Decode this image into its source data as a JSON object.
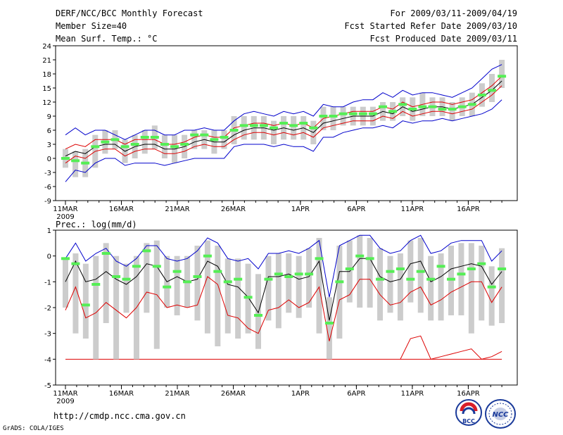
{
  "header": {
    "left": [
      "DERF/NCC/BCC Monthly Forecast",
      "Member Size=40",
      "Mean Surf. Temp.: °C"
    ],
    "right": [
      "For 2009/03/11-2009/04/19",
      "Fcst Started Refer Date 2009/03/10",
      "Fcst Produced Date 2009/03/11"
    ]
  },
  "footer": {
    "url": "http://cmdp.ncc.cma.gov.cn",
    "credit": "GrADS: COLA/IGES"
  },
  "logos": {
    "bcc_label": "BCC",
    "ncc_label": "NCC"
  },
  "colors": {
    "box": "#cccccc",
    "median": "#55ee55",
    "mean": "#000000",
    "low": "#dd0000",
    "envelope": "#0000cc"
  },
  "chart_data": [
    {
      "type": "line",
      "title": "Mean Surf. Temp.: °C",
      "x_tick_labels": [
        "11MAR",
        "16MAR",
        "21MAR",
        "26MAR",
        "1APR",
        "6APR",
        "11APR",
        "16APR"
      ],
      "x_tick_index": [
        0,
        5,
        10,
        15,
        21,
        26,
        31,
        36
      ],
      "x_sub_label": "2009",
      "y_ticks": [
        -9,
        -6,
        -3,
        0,
        3,
        6,
        9,
        12,
        15,
        18,
        21,
        24
      ],
      "ylim": [
        -9,
        24
      ],
      "days": 40,
      "series": [
        {
          "name": "mean",
          "color": "#000000",
          "values": [
            0.5,
            1.5,
            1,
            2.5,
            3,
            3,
            1.5,
            2.5,
            3,
            3,
            2,
            2,
            2.5,
            3.5,
            4,
            3.5,
            3.5,
            5,
            6,
            6.5,
            6.5,
            6,
            6.5,
            6,
            6.5,
            5.5,
            7.5,
            8,
            8.5,
            9,
            9,
            9,
            10,
            9.5,
            11,
            10,
            10.5,
            11,
            11,
            10.5,
            11,
            11.5,
            13,
            14.5,
            16.5
          ]
        },
        {
          "name": "upper",
          "color": "#dd0000",
          "values": [
            2,
            3,
            2.5,
            4,
            4,
            4,
            3,
            4,
            4,
            4,
            3,
            3,
            3.5,
            4.5,
            5,
            4.5,
            4.5,
            6.5,
            7,
            7.5,
            7.5,
            7,
            7.5,
            7,
            7.5,
            6.5,
            8.5,
            9,
            9.5,
            10,
            10,
            10,
            11,
            10.5,
            12,
            11,
            11.5,
            12,
            12,
            11.5,
            12,
            12.5,
            14,
            15.5,
            17.5
          ]
        },
        {
          "name": "lower",
          "color": "#dd0000",
          "values": [
            -1,
            0.5,
            0,
            1.5,
            2,
            2,
            0.5,
            1.5,
            2,
            2,
            1,
            1,
            1.5,
            2.5,
            3,
            2.5,
            2.5,
            4,
            5,
            5.5,
            5.5,
            5,
            5.5,
            5,
            5.5,
            4.5,
            6.5,
            7,
            7.5,
            8,
            8,
            8,
            9,
            8.5,
            10,
            9,
            9.5,
            10,
            10,
            9.5,
            10,
            10.5,
            12,
            13.5,
            15.5
          ]
        },
        {
          "name": "envelope-max",
          "color": "#0000cc",
          "values": [
            5,
            6.5,
            5,
            6,
            6,
            5,
            4,
            5,
            6,
            6,
            5,
            5,
            6,
            6,
            6.5,
            6,
            6,
            8,
            9.5,
            10,
            9.5,
            9,
            10,
            9.5,
            10,
            9,
            11.5,
            11,
            11,
            12,
            12.5,
            12.5,
            14,
            13,
            14.5,
            13.5,
            14,
            14,
            13.5,
            13,
            14,
            15,
            17,
            19,
            20
          ]
        },
        {
          "name": "envelope-min",
          "color": "#0000cc",
          "values": [
            -5,
            -2.5,
            -3,
            -1,
            0,
            0,
            -1.5,
            -1,
            -1,
            -1,
            -1.5,
            -1,
            -0.5,
            0,
            0,
            0,
            0,
            2.5,
            3,
            3,
            3,
            2.5,
            3,
            2.5,
            2.5,
            1.5,
            4.5,
            4.5,
            5.5,
            6,
            6.5,
            6.5,
            7,
            6.5,
            8,
            7.5,
            8,
            8,
            8.5,
            8,
            8.5,
            9,
            9.5,
            10.5,
            12.5
          ]
        },
        {
          "name": "ensemble-median",
          "color": "#55ee55",
          "values": [
            0,
            -0.5,
            -1,
            2.5,
            3.5,
            4,
            2.5,
            3,
            4.5,
            4.5,
            3,
            2.5,
            3,
            5,
            5,
            4,
            4.5,
            6,
            7,
            7,
            7,
            6.5,
            7.5,
            7,
            7.5,
            6.5,
            9,
            9,
            9.5,
            9.5,
            9.5,
            9.5,
            11,
            10,
            11.5,
            10.5,
            11,
            11,
            10.5,
            10.5,
            11,
            11.5,
            13.5,
            14.5,
            17.5
          ]
        },
        {
          "name": "box-top",
          "color": "#cccccc",
          "values": [
            2,
            1.5,
            2,
            5,
            6,
            6,
            4,
            5,
            6,
            7,
            5,
            5,
            5,
            6,
            6,
            6,
            6,
            9,
            9,
            9,
            9,
            8,
            9,
            9,
            9,
            8,
            11,
            11,
            11,
            11,
            11,
            11,
            12,
            12,
            13,
            13,
            14,
            13,
            13,
            12,
            13,
            14,
            16,
            18,
            21
          ]
        },
        {
          "name": "box-bottom",
          "color": "#cccccc",
          "values": [
            -2,
            -4,
            -4,
            -2,
            1,
            2,
            -1,
            0,
            1,
            2,
            0,
            -1,
            0,
            2,
            2,
            1,
            2,
            3,
            4,
            4,
            4,
            3,
            4,
            4,
            4,
            3,
            6,
            6,
            7,
            7,
            7,
            7,
            8,
            8,
            9,
            8,
            9,
            9,
            9,
            8,
            9,
            9,
            11,
            12,
            15
          ]
        }
      ]
    },
    {
      "type": "line",
      "title": "Prec.: log(mm/d)",
      "x_tick_labels": [
        "11MAR",
        "16MAR",
        "21MAR",
        "26MAR",
        "1APR",
        "6APR",
        "11APR",
        "16APR"
      ],
      "x_tick_index": [
        0,
        5,
        10,
        15,
        21,
        26,
        31,
        36
      ],
      "x_sub_label": "2009",
      "y_ticks": [
        -5,
        -4,
        -3,
        -2,
        -1,
        0,
        1
      ],
      "ylim": [
        -5,
        1
      ],
      "days": 40,
      "series": [
        {
          "name": "mean",
          "color": "#000000",
          "values": [
            -1,
            -0.2,
            -1,
            -0.9,
            -0.6,
            -0.9,
            -1.1,
            -0.8,
            -0.3,
            -0.4,
            -1,
            -0.8,
            -1,
            -0.9,
            -0.2,
            -0.4,
            -1.1,
            -1.2,
            -1.6,
            -2.2,
            -0.8,
            -0.8,
            -0.7,
            -0.9,
            -0.8,
            -0.2,
            -2.5,
            -0.6,
            -0.6,
            -0.1,
            -0.1,
            -0.8,
            -1,
            -0.9,
            -0.3,
            -0.2,
            -1,
            -0.8,
            -0.5,
            -0.4,
            -0.3,
            -0.4,
            -1.1,
            -0.6
          ]
        },
        {
          "name": "lower",
          "color": "#dd0000",
          "values": [
            -2.1,
            -1.2,
            -2.4,
            -2.2,
            -1.8,
            -2.1,
            -2.4,
            -2,
            -1.4,
            -1.5,
            -2,
            -1.9,
            -2,
            -1.9,
            -0.8,
            -1.1,
            -2.3,
            -2.4,
            -2.8,
            -3,
            -2.1,
            -2,
            -1.7,
            -2,
            -1.8,
            -1.2,
            -3.3,
            -1.7,
            -1.5,
            -0.9,
            -0.9,
            -1.5,
            -1.9,
            -1.8,
            -1.4,
            -1.2,
            -1.9,
            -1.7,
            -1.4,
            -1.2,
            -1,
            -1,
            -1.8,
            -1.2
          ]
        },
        {
          "name": "envelope-max",
          "color": "#0000cc",
          "values": [
            -0.1,
            0.5,
            -0.2,
            0.1,
            0.3,
            -0.2,
            -0.4,
            -0.1,
            0.4,
            0.4,
            -0.1,
            -0.2,
            -0.1,
            0.2,
            0.7,
            0.5,
            -0.1,
            -0.2,
            -0.1,
            -0.5,
            0.1,
            0.1,
            0.2,
            0.1,
            0.3,
            0.6,
            -1.6,
            0.4,
            0.6,
            0.8,
            0.8,
            0.3,
            0.1,
            0.2,
            0.6,
            0.8,
            0.1,
            0.2,
            0.5,
            0.6,
            0.6,
            0.6,
            -0.2,
            0.2
          ]
        },
        {
          "name": "ensemble-median",
          "color": "#55ee55",
          "values": [
            -0.1,
            -0.3,
            -1.9,
            -1.1,
            0.1,
            -0.8,
            -0.9,
            -0.4,
            0.2,
            -0.4,
            -1.2,
            -0.6,
            -1,
            -0.8,
            0.0,
            -0.6,
            -1.0,
            -0.9,
            -1.6,
            -2.3,
            -0.9,
            -0.7,
            -0.8,
            -0.7,
            -0.7,
            -0.1,
            -2.6,
            -1.0,
            -0.5,
            0.0,
            -0.1,
            -0.9,
            -0.6,
            -0.5,
            -0.9,
            -0.6,
            -0.9,
            -0.4,
            -0.9,
            -0.7,
            -0.5,
            -0.3,
            -1.2,
            -0.5
          ]
        },
        {
          "name": "box-top",
          "color": "#cccccc",
          "values": [
            -0.1,
            0.1,
            -0.3,
            0,
            0.5,
            0,
            -0.3,
            0,
            0.5,
            0.6,
            0,
            0,
            0,
            0.4,
            0.6,
            0.4,
            -0.1,
            -0.1,
            -0.3,
            -0.7,
            0,
            0.1,
            0.1,
            0,
            0.3,
            0.7,
            -1.6,
            0.4,
            0.6,
            0.8,
            0.7,
            0.3,
            0,
            0.1,
            0.6,
            0.7,
            0,
            0.1,
            0.4,
            0.5,
            0.5,
            0.4,
            -0.4,
            0.3
          ]
        },
        {
          "name": "box-bottom",
          "color": "#cccccc",
          "values": [
            -2,
            -3,
            -3.2,
            -4,
            -2.6,
            -4,
            -2.2,
            -4,
            -2.2,
            -3.6,
            -2,
            -2.3,
            -2,
            -2.5,
            -3,
            -3.5,
            -3,
            -3.2,
            -3,
            -3.6,
            -2.5,
            -2.8,
            -2.2,
            -2.4,
            -2,
            -3,
            -4,
            -3.2,
            -1.8,
            -2,
            -2,
            -2.5,
            -2.2,
            -2.5,
            -1.8,
            -2.2,
            -2.5,
            -2.5,
            -2.3,
            -2.3,
            -3,
            -2.5,
            -2.7,
            -2.6
          ]
        },
        {
          "name": "tail-red",
          "color": "#dd0000",
          "values": [
            null,
            null,
            null,
            null,
            null,
            null,
            null,
            null,
            null,
            null,
            null,
            null,
            null,
            null,
            null,
            null,
            null,
            null,
            null,
            null,
            null,
            null,
            null,
            null,
            null,
            null,
            null,
            null,
            null,
            null,
            null,
            null,
            null,
            -4,
            -3.2,
            -3.1,
            -4,
            -3.9,
            -3.8,
            -3.7,
            -3.6,
            -4,
            -3.9,
            -3.7
          ]
        }
      ],
      "floor": -4
    }
  ]
}
